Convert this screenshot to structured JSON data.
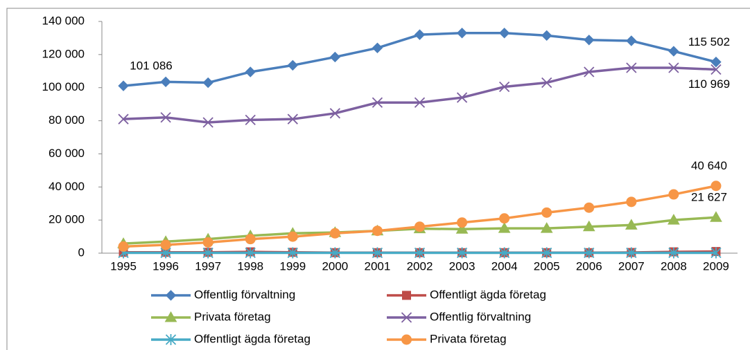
{
  "chart_data": {
    "type": "line",
    "categories": [
      "1995",
      "1996",
      "1997",
      "1998",
      "1999",
      "2000",
      "2001",
      "2002",
      "2003",
      "2004",
      "2005",
      "2006",
      "2007",
      "2008",
      "2009"
    ],
    "ylim": [
      0,
      140000
    ],
    "yticks": [
      {
        "value": 0,
        "label": "0"
      },
      {
        "value": 20000,
        "label": "20 000"
      },
      {
        "value": 40000,
        "label": "40 000"
      },
      {
        "value": 60000,
        "label": "60 000"
      },
      {
        "value": 80000,
        "label": "80 000"
      },
      {
        "value": 100000,
        "label": "100 000"
      },
      {
        "value": 120000,
        "label": "120 000"
      },
      {
        "value": 140000,
        "label": "140 000"
      }
    ],
    "grid": false,
    "series": [
      {
        "name": "Offentlig förvaltning",
        "color": "#4a7ebb",
        "marker": "diamond",
        "values": [
          101086,
          103500,
          103000,
          109500,
          113500,
          118500,
          124000,
          132000,
          133000,
          133000,
          131500,
          128800,
          128300,
          122000,
          115502
        ],
        "value_labels": [
          "101 086",
          null,
          null,
          null,
          null,
          null,
          null,
          null,
          null,
          null,
          null,
          null,
          null,
          null,
          "115 502"
        ]
      },
      {
        "name": "Offentligt ägda företag",
        "color": "#be4b48",
        "marker": "square",
        "values": [
          500,
          500,
          500,
          800,
          500,
          300,
          300,
          300,
          300,
          300,
          300,
          300,
          400,
          800,
          1000
        ]
      },
      {
        "name": "Privata företag",
        "color": "#98b954",
        "marker": "triangle",
        "values": [
          5800,
          7000,
          8500,
          10500,
          12000,
          12500,
          13500,
          14800,
          14500,
          15000,
          15000,
          16000,
          17000,
          20000,
          21627
        ],
        "value_labels": [
          null,
          null,
          null,
          null,
          null,
          null,
          null,
          null,
          null,
          null,
          null,
          null,
          null,
          null,
          "21 627"
        ]
      },
      {
        "name": "Offentlig förvaltning",
        "color": "#7d60a0",
        "marker": "x",
        "values": [
          81000,
          82000,
          79000,
          80500,
          81000,
          84500,
          91000,
          91000,
          94000,
          100500,
          103000,
          109500,
          112000,
          112000,
          110969
        ],
        "value_labels": [
          null,
          null,
          null,
          null,
          null,
          null,
          null,
          null,
          null,
          null,
          null,
          null,
          null,
          null,
          "110 969"
        ]
      },
      {
        "name": "Offentligt ägda företag",
        "color": "#46aac5",
        "marker": "star",
        "values": [
          200,
          200,
          200,
          200,
          200,
          200,
          200,
          200,
          200,
          200,
          200,
          200,
          200,
          200,
          200
        ]
      },
      {
        "name": "Privata företag",
        "color": "#f79646",
        "marker": "circle",
        "values": [
          4000,
          5000,
          6500,
          8500,
          10000,
          12000,
          13500,
          16000,
          18500,
          21000,
          24500,
          27500,
          31000,
          35500,
          40640
        ],
        "value_labels": [
          null,
          null,
          null,
          null,
          null,
          null,
          null,
          null,
          null,
          null,
          null,
          null,
          null,
          null,
          "40 640"
        ]
      }
    ]
  }
}
